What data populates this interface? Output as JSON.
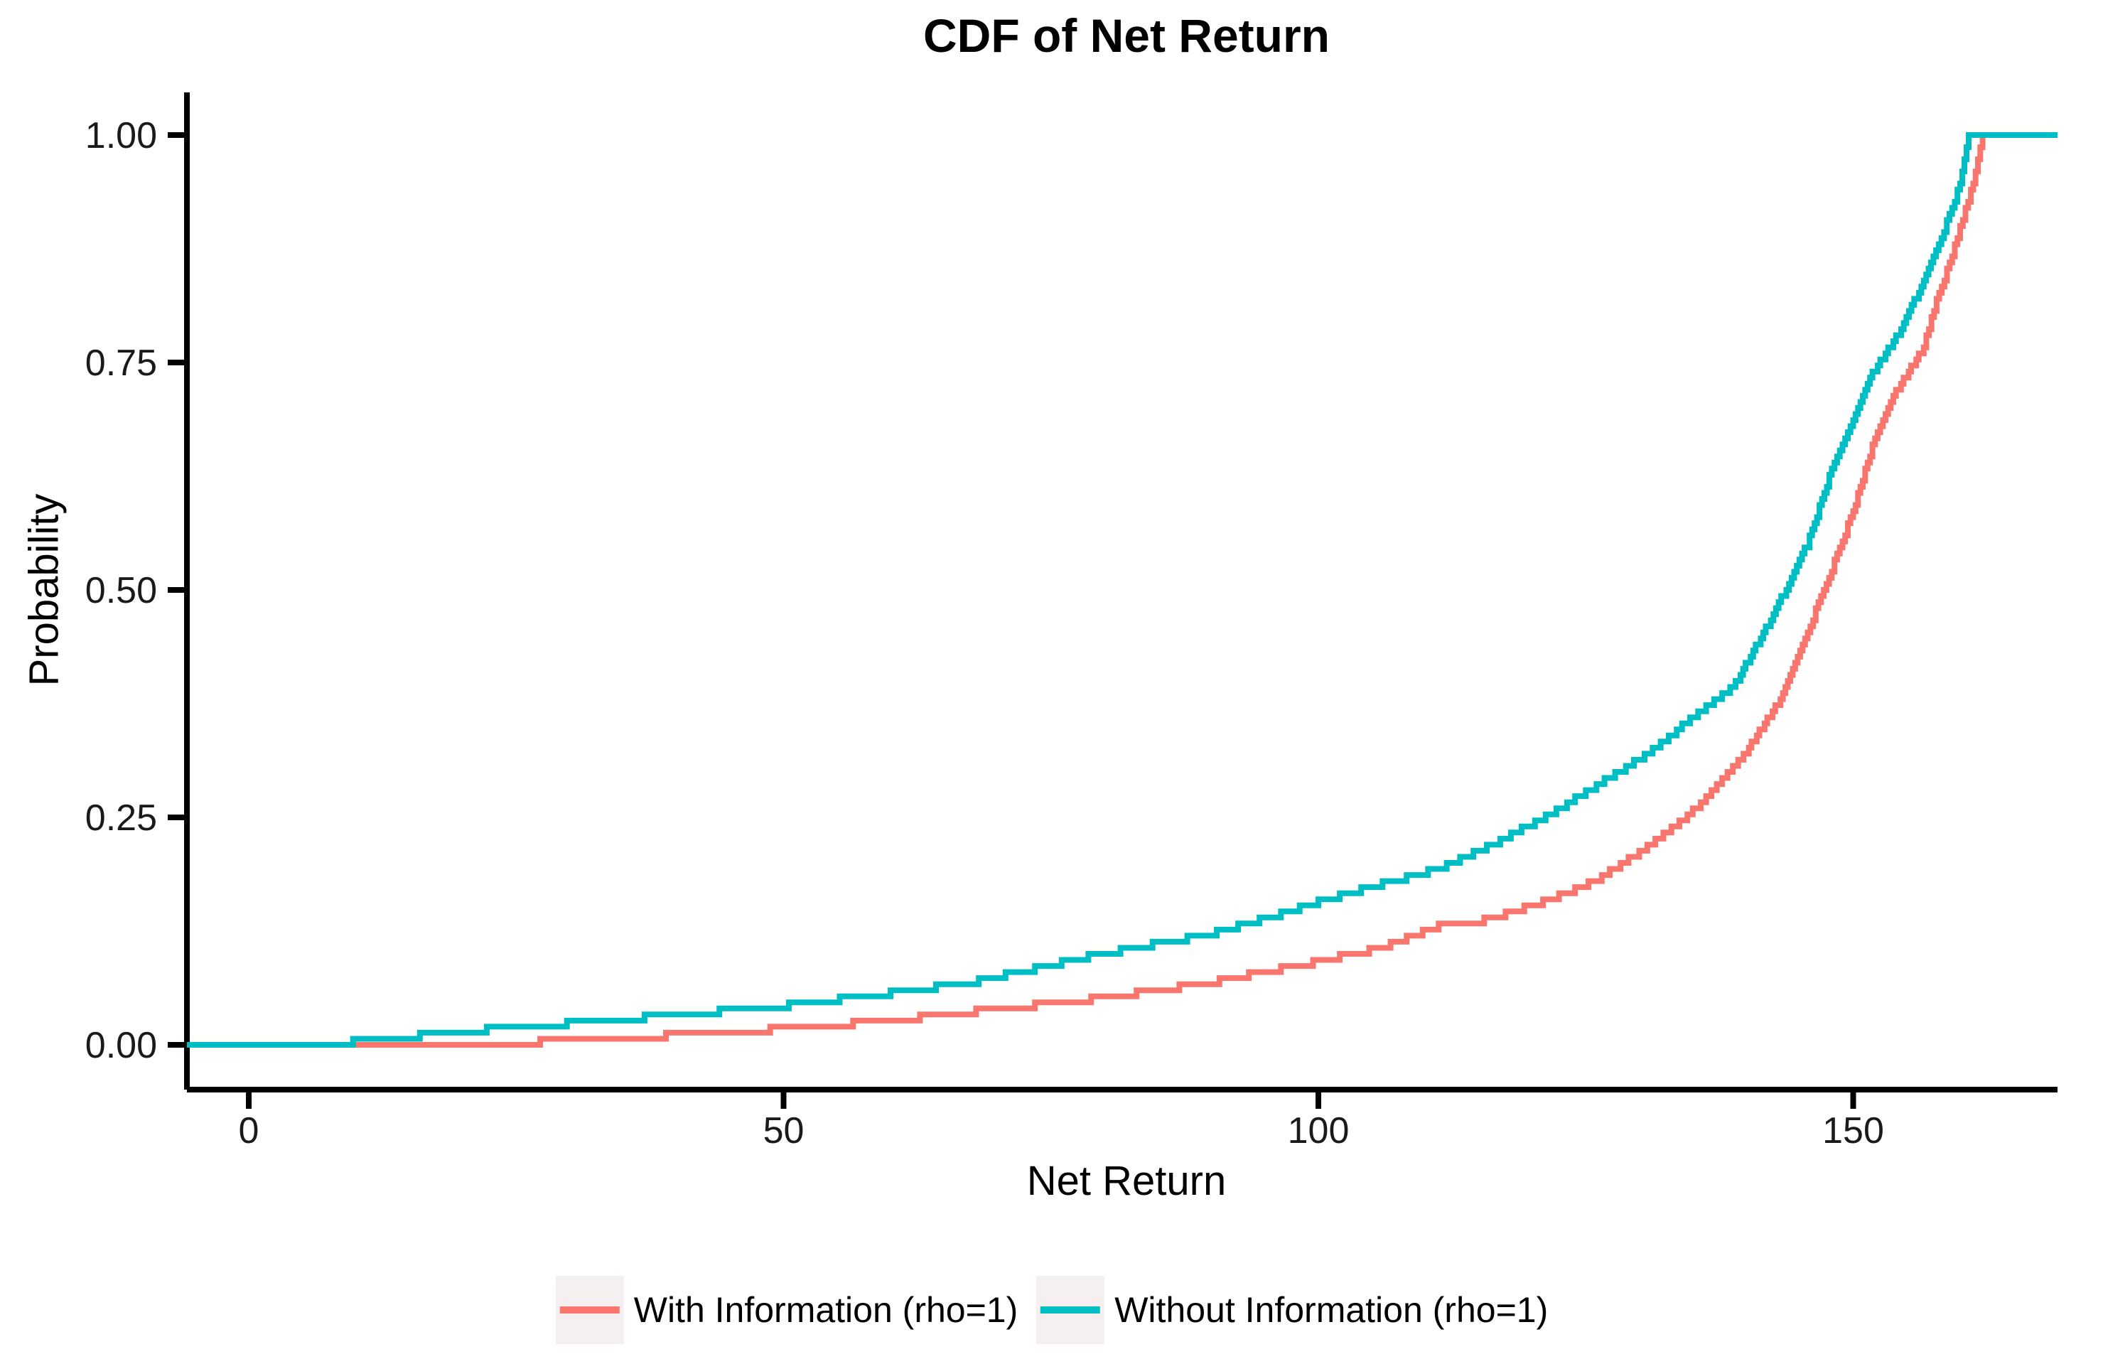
{
  "page": {
    "background": "#ffffff",
    "axis_color": "#000000",
    "tick_text_color": "#1a1a1a"
  },
  "chart": {
    "title": "CDF of Net Return",
    "x_axis": {
      "label": "Net Return",
      "tick_labels": [
        "0",
        "50",
        "100",
        "150"
      ],
      "tick_values": [
        0,
        50,
        100,
        150
      ]
    },
    "y_axis": {
      "label": "Probability",
      "tick_labels": [
        "0.00",
        "0.25",
        "0.50",
        "0.75",
        "1.00"
      ],
      "tick_values": [
        0,
        0.25,
        0.5,
        0.75,
        1
      ]
    },
    "legend": {
      "position": "bottom",
      "key_background": "#F5EFF0",
      "items": [
        {
          "key": "with-information",
          "label": "With Information (rho=1)",
          "color": "#F8766D"
        },
        {
          "key": "without-information",
          "label": "Without Information (rho=1)",
          "color": "#00BFC4"
        }
      ]
    }
  },
  "chart_data": {
    "type": "line",
    "subtype": "ecdf-step",
    "title": "CDF of Net Return",
    "xlabel": "Net Return",
    "ylabel": "Probability",
    "xlim": [
      -5.8,
      169.2
    ],
    "ylim": [
      -0.049,
      1.047
    ],
    "grid": false,
    "legend_position": "bottom",
    "n_observations": 150,
    "series": [
      {
        "name": "With Information (rho=1)",
        "key": "with-information",
        "color": "#F8766D",
        "anchors": [
          [
            -5.8,
            0
          ],
          [
            5,
            0
          ],
          [
            21,
            0.004
          ],
          [
            28,
            0.007
          ],
          [
            31,
            0.008
          ],
          [
            40,
            0.014
          ],
          [
            50,
            0.021
          ],
          [
            60,
            0.03
          ],
          [
            68,
            0.04
          ],
          [
            80,
            0.055
          ],
          [
            90,
            0.072
          ],
          [
            96,
            0.086
          ],
          [
            100,
            0.095
          ],
          [
            106,
            0.11
          ],
          [
            111,
            0.133
          ],
          [
            116,
            0.141
          ],
          [
            121,
            0.16
          ],
          [
            126,
            0.184
          ],
          [
            131,
            0.222
          ],
          [
            136,
            0.27
          ],
          [
            140,
            0.326
          ],
          [
            143.2,
            0.383
          ],
          [
            145.5,
            0.45
          ],
          [
            148,
            0.526
          ],
          [
            150,
            0.59
          ],
          [
            151.8,
            0.66
          ],
          [
            154,
            0.72
          ],
          [
            156.6,
            0.77
          ],
          [
            157.8,
            0.82
          ],
          [
            159.5,
            0.88
          ],
          [
            161,
            0.94
          ],
          [
            162.1,
            1.0
          ],
          [
            169.2,
            1.0
          ]
        ]
      },
      {
        "name": "Without Information (rho=1)",
        "key": "without-information",
        "color": "#00BFC4",
        "anchors": [
          [
            -5.8,
            0
          ],
          [
            4.3,
            0
          ],
          [
            7,
            0.004
          ],
          [
            10,
            0.007
          ],
          [
            20,
            0.018
          ],
          [
            31,
            0.028
          ],
          [
            40,
            0.036
          ],
          [
            50,
            0.046
          ],
          [
            60,
            0.06
          ],
          [
            68,
            0.073
          ],
          [
            80,
            0.104
          ],
          [
            90,
            0.125
          ],
          [
            96,
            0.145
          ],
          [
            100,
            0.16
          ],
          [
            106,
            0.18
          ],
          [
            111,
            0.196
          ],
          [
            116,
            0.222
          ],
          [
            121,
            0.252
          ],
          [
            126,
            0.288
          ],
          [
            131,
            0.325
          ],
          [
            136,
            0.373
          ],
          [
            139,
            0.4
          ],
          [
            142.3,
            0.47
          ],
          [
            145.7,
            0.553
          ],
          [
            148,
            0.636
          ],
          [
            150,
            0.69
          ],
          [
            151.8,
            0.74
          ],
          [
            154,
            0.78
          ],
          [
            155.7,
            0.82
          ],
          [
            157.5,
            0.87
          ],
          [
            159,
            0.914
          ],
          [
            160,
            0.95
          ],
          [
            160.8,
            1.0
          ],
          [
            169.2,
            1.0
          ]
        ]
      }
    ]
  }
}
